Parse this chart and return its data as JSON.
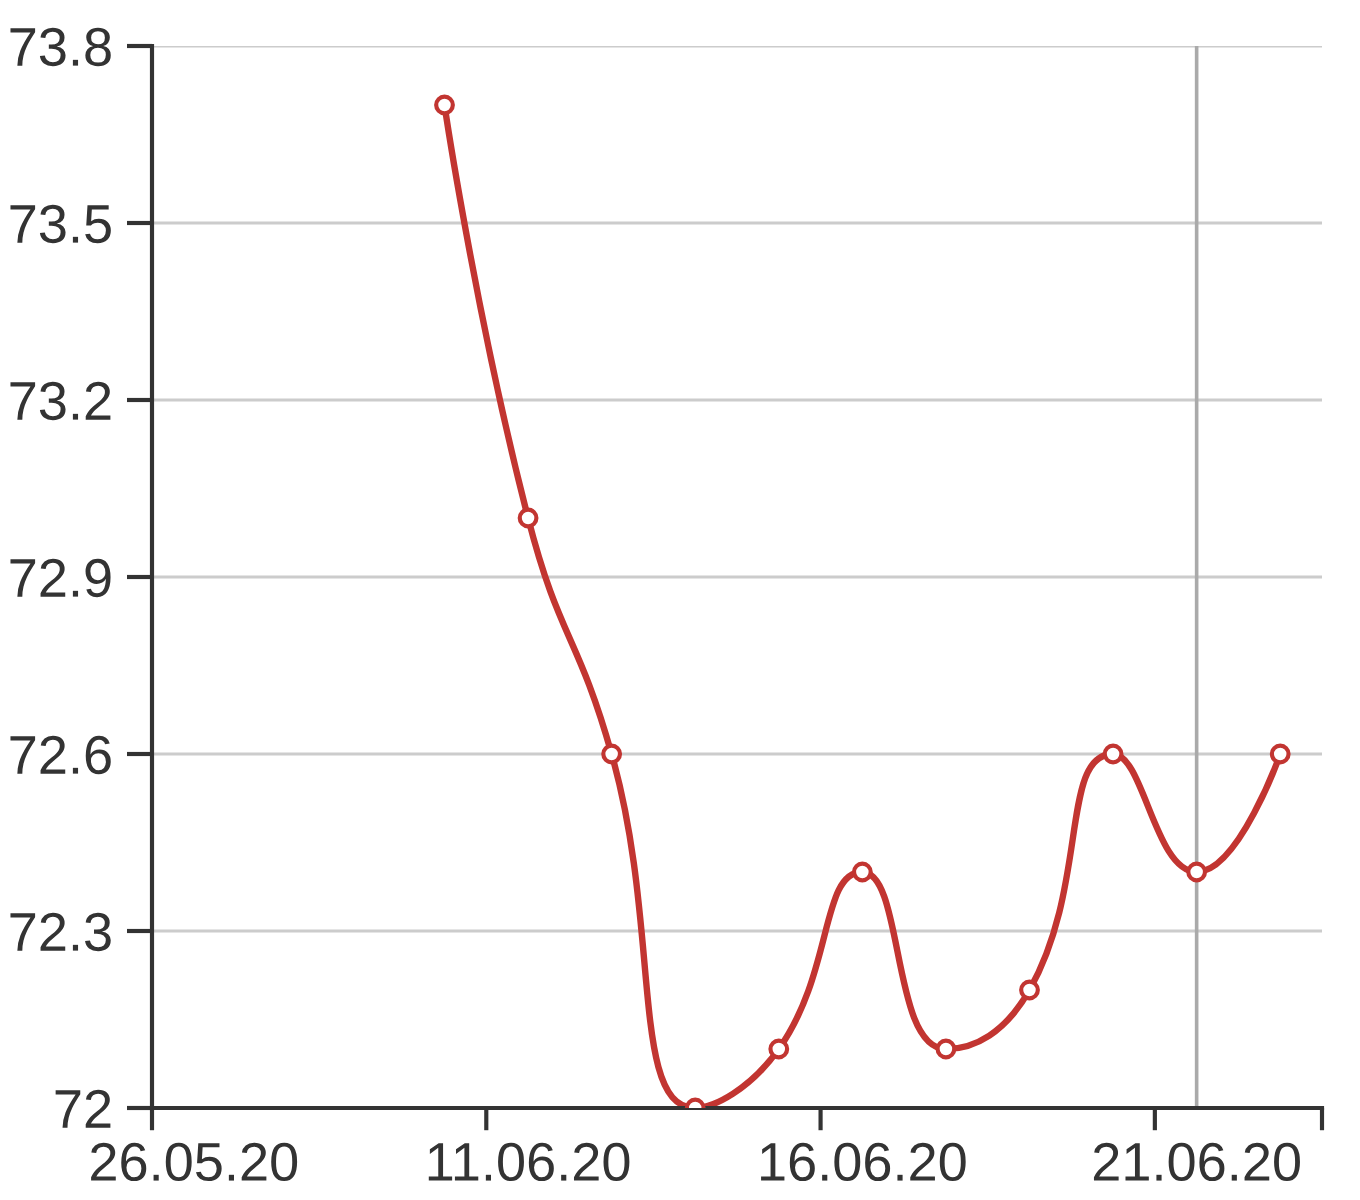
{
  "chart_data": {
    "type": "line",
    "categories": [
      "26.05.20",
      null,
      null,
      null,
      "11.06.20",
      null,
      null,
      null,
      "16.06.20",
      null,
      null,
      null,
      "21.06.20",
      null
    ],
    "series": [
      {
        "color": "#c23531",
        "values": [
          null,
          null,
          null,
          73.7,
          73.0,
          72.6,
          72.0,
          72.1,
          72.4,
          72.1,
          72.2,
          72.6,
          72.4,
          72.6
        ]
      }
    ],
    "ylim": [
      72,
      73.8
    ],
    "yticks": [
      72,
      72.3,
      72.6,
      72.9,
      73.2,
      73.5,
      73.8
    ],
    "grid": "y",
    "marker": "circle",
    "line_style": "solid",
    "ref_lines": [
      {
        "axis": "x",
        "value": "21.06.20",
        "color": "#aaaaaa"
      }
    ]
  }
}
